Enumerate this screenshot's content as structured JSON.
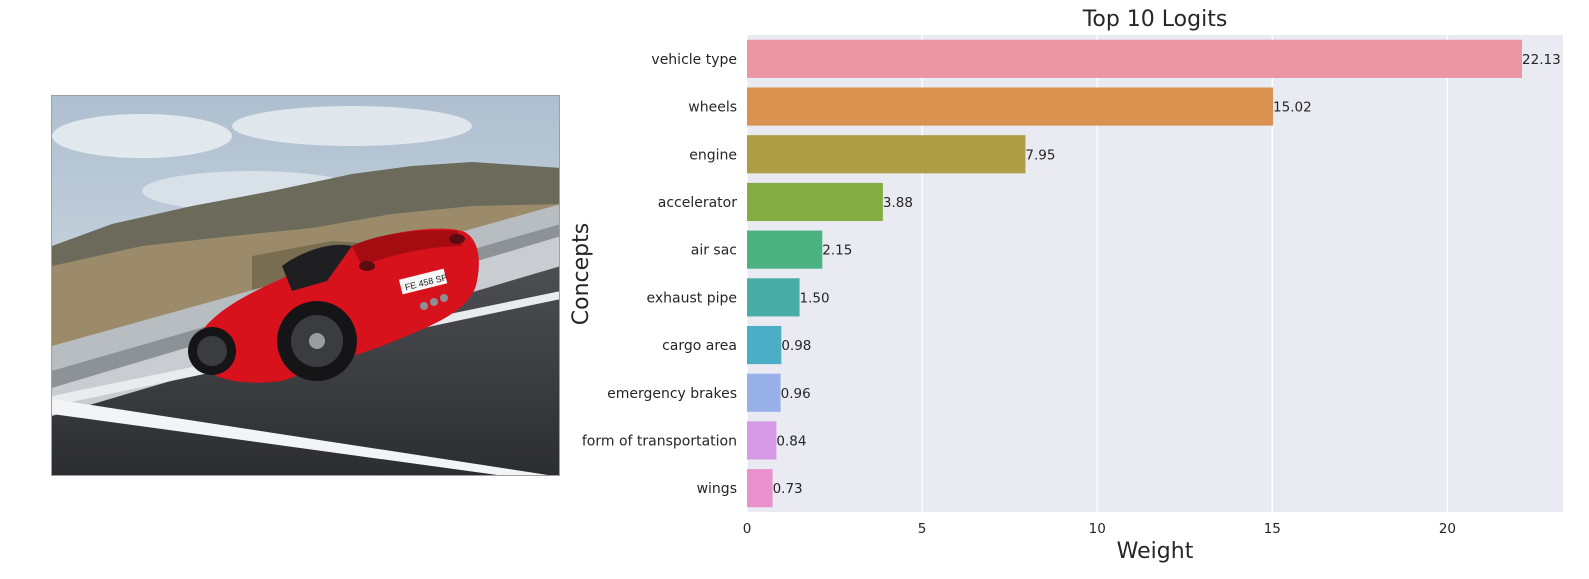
{
  "photo": {
    "description_icon": "car-photo",
    "plate_text": "FE 458 SP"
  },
  "chart_data": {
    "type": "bar",
    "orientation": "horizontal",
    "title": "Top 10 Logits",
    "xlabel": "Weight",
    "ylabel": "Concepts",
    "categories": [
      "vehicle type",
      "wheels",
      "engine",
      "accelerator",
      "air sac",
      "exhaust pipe",
      "cargo area",
      "emergency brakes",
      "form of transportation",
      "wings"
    ],
    "values": [
      22.13,
      15.02,
      7.95,
      3.88,
      2.15,
      1.5,
      0.98,
      0.96,
      0.84,
      0.73
    ],
    "value_labels": [
      "22.13",
      "15.02",
      "7.95",
      "3.88",
      "2.15",
      "1.50",
      "0.98",
      "0.96",
      "0.84",
      "0.73"
    ],
    "colors": [
      "#ec96a3",
      "#d9924f",
      "#ad9d45",
      "#84ab44",
      "#4bb37f",
      "#4aada5",
      "#4caec6",
      "#98b0e8",
      "#d49ae6",
      "#e991cc"
    ],
    "xlim": [
      0,
      23.3
    ],
    "xticks": [
      0,
      5,
      10,
      15,
      20
    ],
    "grid": true,
    "background": "#eaeaf2"
  }
}
